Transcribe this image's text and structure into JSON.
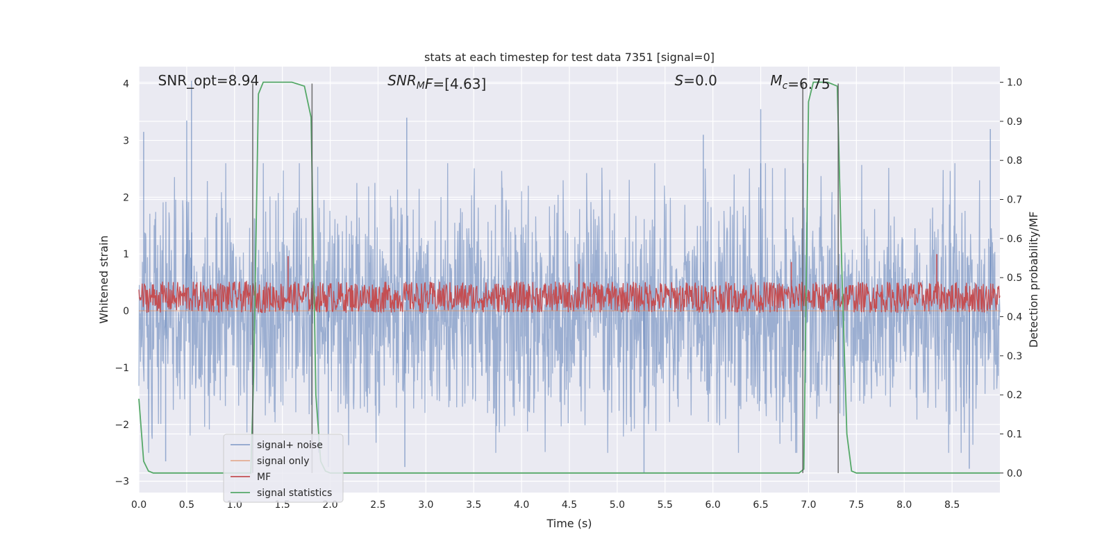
{
  "chart_data": {
    "type": "line",
    "title": "stats at each timestep for test data 7351 [signal=0]",
    "xlabel": "Time (s)",
    "ylabel": "Whitened strain",
    "y2label": "Detection probability/MF",
    "xlim": [
      0,
      9
    ],
    "ylim": [
      -3.2,
      4.3
    ],
    "y2lim": [
      -0.05,
      1.04
    ],
    "x_ticks": [
      0.0,
      0.5,
      1.0,
      1.5,
      2.0,
      2.5,
      3.0,
      3.5,
      4.0,
      4.5,
      5.0,
      5.5,
      6.0,
      6.5,
      7.0,
      7.5,
      8.0,
      8.5
    ],
    "x_tick_labels": [
      "0.0",
      "0.5",
      "1.0",
      "1.5",
      "2.0",
      "2.5",
      "3.0",
      "3.5",
      "4.0",
      "4.5",
      "5.0",
      "5.5",
      "6.0",
      "6.5",
      "7.0",
      "7.5",
      "8.0",
      "8.5"
    ],
    "y_ticks": [
      -3,
      -2,
      -1,
      0,
      1,
      2,
      3,
      4
    ],
    "y_tick_labels": [
      "−3",
      "−2",
      "−1",
      "0",
      "1",
      "2",
      "3",
      "4"
    ],
    "y2_ticks": [
      0.0,
      0.1,
      0.2,
      0.3,
      0.4,
      0.5,
      0.6,
      0.7,
      0.8,
      0.9,
      1.0
    ],
    "y2_tick_labels": [
      "0.0",
      "0.1",
      "0.2",
      "0.3",
      "0.4",
      "0.5",
      "0.6",
      "0.7",
      "0.8",
      "0.9",
      "1.0"
    ],
    "grid": true,
    "legend_position": "lower-left",
    "annotations": [
      {
        "id": "snr-opt",
        "x": 0.2,
        "parts": [
          {
            "t": "SNR_opt=8.94",
            "italic": false
          }
        ]
      },
      {
        "id": "snr-mf",
        "x": 2.6,
        "parts": [
          {
            "t": "SNR",
            "italic": true
          },
          {
            "t": "M",
            "italic": true,
            "sub": true
          },
          {
            "t": "F",
            "italic": true
          },
          {
            "t": "=[4.63]",
            "italic": false
          }
        ]
      },
      {
        "id": "s",
        "x": 5.6,
        "parts": [
          {
            "t": "S",
            "italic": true
          },
          {
            "t": "=0.0",
            "italic": false
          }
        ]
      },
      {
        "id": "mc",
        "x": 6.6,
        "parts": [
          {
            "t": "M",
            "italic": true
          },
          {
            "t": "c",
            "italic": true,
            "sub": true
          },
          {
            "t": "=6.75",
            "italic": false
          }
        ]
      }
    ],
    "vertical_lines": [
      1.19,
      1.81,
      6.94,
      7.31
    ],
    "series": [
      {
        "name": "signal+ noise",
        "color": "#4c72b0",
        "axis": "left",
        "kind": "noise",
        "amplitude_envelope": [
          2.2,
          2.7
        ],
        "peaks": [
          [
            0.55,
            4.05
          ],
          [
            0.05,
            3.15
          ],
          [
            0.5,
            3.35
          ],
          [
            2.8,
            3.4
          ],
          [
            6.5,
            3.55
          ],
          [
            8.9,
            3.2
          ],
          [
            5.9,
            3.1
          ],
          [
            1.98,
            -2.75
          ],
          [
            2.78,
            -2.75
          ],
          [
            5.28,
            -2.85
          ],
          [
            8.68,
            -2.78
          ],
          [
            0.28,
            -2.65
          ]
        ]
      },
      {
        "name": "signal only",
        "color": "#dd8452",
        "axis": "left",
        "kind": "flat",
        "value": 0
      },
      {
        "name": "MF",
        "color": "#c44e52",
        "axis": "right",
        "kind": "noise-band",
        "band": [
          0.41,
          0.49
        ],
        "peaks": [
          [
            1.56,
            0.555
          ],
          [
            8.34,
            0.56
          ],
          [
            6.82,
            0.54
          ],
          [
            4.6,
            0.535
          ]
        ]
      },
      {
        "name": "signal statistics",
        "color": "#55a868",
        "axis": "right",
        "kind": "line",
        "x": [
          0.0,
          0.05,
          0.1,
          0.15,
          0.2,
          0.3,
          1.0,
          1.17,
          1.2,
          1.25,
          1.3,
          1.4,
          1.6,
          1.73,
          1.8,
          1.85,
          1.9,
          1.95,
          2.0,
          6.9,
          6.95,
          7.0,
          7.05,
          7.1,
          7.2,
          7.3,
          7.35,
          7.4,
          7.45,
          7.5,
          9.0
        ],
        "y": [
          0.19,
          0.03,
          0.005,
          0.0,
          0.0,
          0.0,
          0.0,
          0.0,
          0.25,
          0.97,
          1.0,
          1.0,
          1.0,
          0.99,
          0.91,
          0.2,
          0.03,
          0.005,
          0.0,
          0.0,
          0.01,
          0.95,
          1.0,
          1.0,
          1.0,
          0.99,
          0.5,
          0.1,
          0.005,
          0.0,
          0.0
        ]
      }
    ]
  }
}
